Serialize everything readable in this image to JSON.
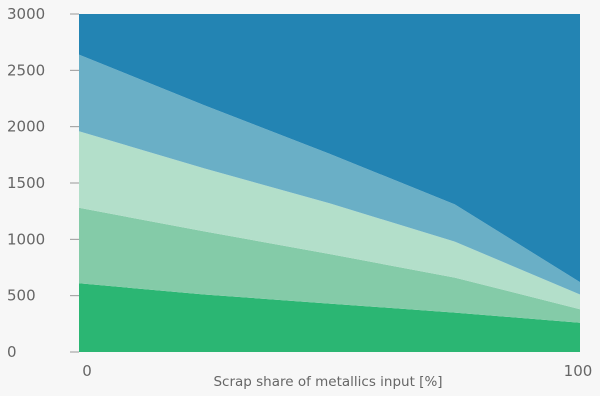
{
  "chart_data": {
    "type": "area",
    "stacked": true,
    "xlabel": "Scrap share of metallics input [%]",
    "ylabel": "",
    "xlim": [
      0,
      100
    ],
    "ylim": [
      0,
      3000
    ],
    "x_ticks": [
      "0",
      "100"
    ],
    "y_ticks": [
      "0",
      "500",
      "1000",
      "1500",
      "2000",
      "2500",
      "3000"
    ],
    "x": [
      0,
      25,
      50,
      75,
      100
    ],
    "grid": false,
    "legend": "none",
    "series": [
      {
        "color": "#2bb673",
        "values": [
          610,
          510,
          430,
          350,
          260
        ]
      },
      {
        "color": "#84cba8",
        "values": [
          670,
          560,
          440,
          310,
          120
        ]
      },
      {
        "color": "#b3dfca",
        "values": [
          680,
          560,
          450,
          320,
          130
        ]
      },
      {
        "color": "#6aafc6",
        "values": [
          680,
          560,
          440,
          330,
          110
        ]
      },
      {
        "color": "#2384b3",
        "values": [
          360,
          810,
          1240,
          1690,
          2380
        ]
      }
    ]
  }
}
